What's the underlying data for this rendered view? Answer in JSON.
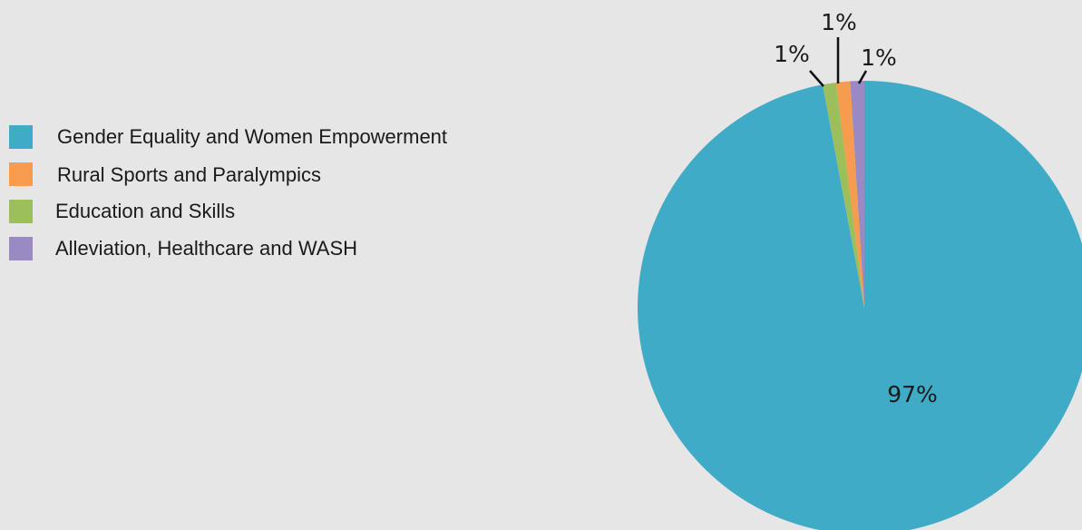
{
  "chart_data": {
    "type": "pie",
    "slices": [
      {
        "label": "Gender Equality and Women Empowerment",
        "value": 97,
        "value_label": "97%",
        "color": "#40abc6"
      },
      {
        "label": "Rural Sports and Paralympics",
        "value": 1,
        "value_label": "1%",
        "color": "#f79b4f"
      },
      {
        "label": "Education and Skills",
        "value": 1,
        "value_label": "1%",
        "color": "#9cbf5c"
      },
      {
        "label": "Alleviation, Healthcare and WASH",
        "value": 1,
        "value_label": "1%",
        "color": "#9a8ac4"
      }
    ],
    "legend_position": "left"
  }
}
